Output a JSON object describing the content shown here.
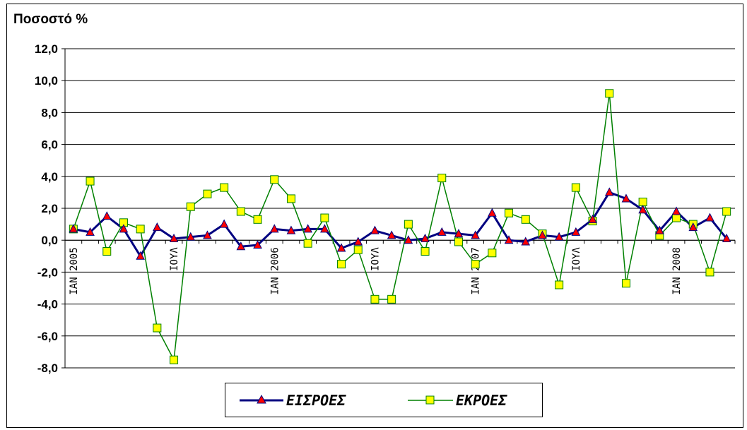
{
  "chart_data": {
    "type": "line",
    "ylabel": "Ποσοστό %",
    "ylim": [
      -8.0,
      12.0
    ],
    "y_ticks": [
      "12,0",
      "10,0",
      "8,0",
      "6,0",
      "4,0",
      "2,0",
      "0,0",
      "-2,0",
      "-4,0",
      "-6,0",
      "-8,0"
    ],
    "x_tick_labels": [
      {
        "index": 0,
        "label": "ΙΑΝ 2005"
      },
      {
        "index": 6,
        "label": "ΙΟΥΛ"
      },
      {
        "index": 12,
        "label": "ΙΑΝ 2006"
      },
      {
        "index": 18,
        "label": "ΙΟΥΛ"
      },
      {
        "index": 24,
        "label": "ΙΑΝ 2007"
      },
      {
        "index": 30,
        "label": "ΙΟΥΛ"
      },
      {
        "index": 36,
        "label": "ΙΑΝ 2008"
      }
    ],
    "grid": "horizontal",
    "legend_position": "bottom",
    "series": [
      {
        "name": "ΕΙΣΡΟΕΣ",
        "color": "#000080",
        "marker_color": "#ff0000",
        "marker": "triangle",
        "values": [
          0.7,
          0.5,
          1.5,
          0.7,
          -1.0,
          0.8,
          0.1,
          0.2,
          0.3,
          1.0,
          -0.4,
          -0.3,
          0.7,
          0.6,
          0.7,
          0.7,
          -0.5,
          -0.1,
          0.6,
          0.3,
          0.0,
          0.1,
          0.5,
          0.4,
          0.3,
          1.7,
          0.0,
          -0.1,
          0.3,
          0.2,
          0.5,
          1.3,
          3.0,
          2.6,
          1.9,
          0.6,
          1.8,
          0.8,
          1.4,
          0.1
        ]
      },
      {
        "name": "ΕΚΡΟΕΣ",
        "color": "#008000",
        "marker_color": "#ffff00",
        "marker": "square",
        "values": [
          0.7,
          3.7,
          -0.7,
          1.1,
          0.7,
          -5.5,
          -7.5,
          2.1,
          2.9,
          3.3,
          1.8,
          1.3,
          3.8,
          2.6,
          -0.2,
          1.4,
          -1.5,
          -0.6,
          -3.7,
          -3.7,
          1.0,
          -0.7,
          3.9,
          -0.1,
          -1.5,
          -0.8,
          1.7,
          1.3,
          0.4,
          -2.8,
          3.3,
          1.2,
          9.2,
          -2.7,
          2.4,
          0.3,
          1.4,
          1.0,
          -2.0,
          1.8
        ]
      }
    ]
  }
}
